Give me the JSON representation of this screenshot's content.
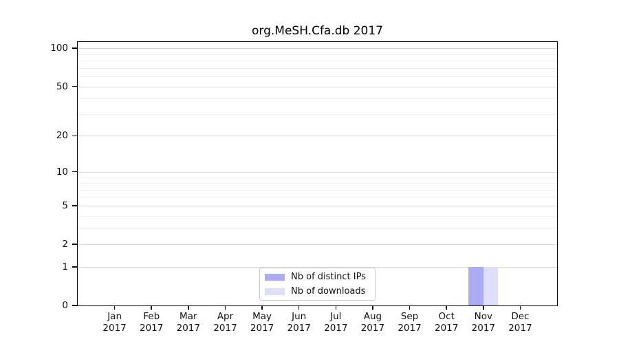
{
  "title": "org.MeSH.Cfa.db 2017",
  "legend": {
    "items": [
      {
        "label": "Nb of distinct IPs"
      },
      {
        "label": "Nb of downloads"
      }
    ]
  },
  "chart_data": {
    "type": "bar",
    "title": "org.MeSH.Cfa.db 2017",
    "categories": [
      "Jan 2017",
      "Feb 2017",
      "Mar 2017",
      "Apr 2017",
      "May 2017",
      "Jun 2017",
      "Jul 2017",
      "Aug 2017",
      "Sep 2017",
      "Oct 2017",
      "Nov 2017",
      "Dec 2017"
    ],
    "series": [
      {
        "name": "Nb of distinct IPs",
        "color": "#ababf6",
        "values": [
          0,
          0,
          0,
          0,
          0,
          0,
          0,
          0,
          0,
          0,
          1,
          0
        ]
      },
      {
        "name": "Nb of downloads",
        "color": "#dfdffa",
        "values": [
          0,
          0,
          0,
          0,
          0,
          0,
          0,
          0,
          0,
          0,
          1,
          0
        ]
      }
    ],
    "xlabel": "",
    "ylabel": "",
    "y_scale": "log1p",
    "ylim": [
      0,
      112
    ],
    "y_ticks": [
      0,
      1,
      2,
      5,
      10,
      20,
      50,
      100
    ],
    "y_minor_ticks": [
      3,
      4,
      6,
      7,
      8,
      9,
      30,
      40,
      60,
      70,
      80,
      90
    ],
    "grid": "horizontal",
    "legend_position": "inside-bottom-center",
    "colors": {
      "grid_major": "#d8d8d8",
      "grid_minor": "#f0f0f0",
      "axis": "#0a0a0a"
    }
  }
}
